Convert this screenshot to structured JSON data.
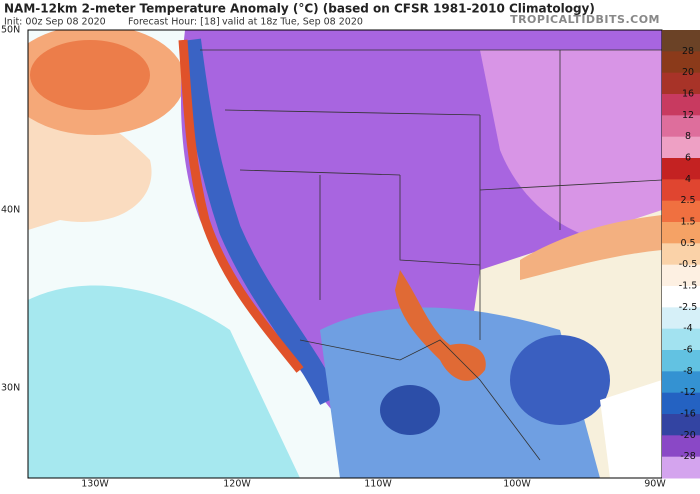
{
  "header": {
    "title": "NAM-12km 2-meter Temperature Anomaly (°C) (based on CFSR 1981-2010 Climatology)",
    "init": "Init: 00z Sep 08 2020",
    "forecast_hour": "Forecast Hour: [18]",
    "valid": "valid at 18z Tue, Sep 08 2020",
    "brand": "TROPICALTIDBITS.COM"
  },
  "map": {
    "lat_labels": [
      "50N",
      "40N",
      "30N"
    ],
    "lon_labels": [
      "130W",
      "120W",
      "110W",
      "100W",
      "90W"
    ]
  },
  "colorbar": {
    "labels": [
      "28",
      "20",
      "16",
      "12",
      "8",
      "6",
      "4",
      "2.5",
      "1.5",
      "0.5",
      "-0.5",
      "-1.5",
      "-2.5",
      "-4",
      "-6",
      "-8",
      "-12",
      "-16",
      "-20",
      "-28"
    ]
  }
}
